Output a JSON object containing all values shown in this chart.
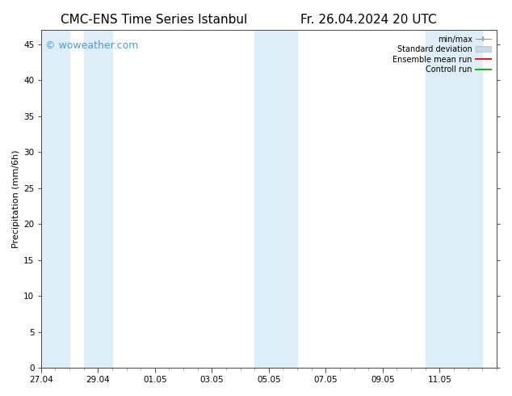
{
  "title": "CMC-ENS Time Series Istanbul",
  "title_right": "Fr. 26.04.2024 20 UTC",
  "ylabel": "Precipitation (mm/6h)",
  "watermark": "© woweather.com",
  "watermark_color": "#5599cc",
  "background_color": "#ffffff",
  "plot_bg_color": "#ffffff",
  "ylim": [
    0,
    47
  ],
  "yticks": [
    0,
    5,
    10,
    15,
    20,
    25,
    30,
    35,
    40,
    45
  ],
  "xtick_labels": [
    "27.04",
    "29.04",
    "01.05",
    "03.05",
    "05.05",
    "07.05",
    "09.05",
    "11.05"
  ],
  "xtick_positions": [
    0,
    2,
    4,
    6,
    8,
    10,
    12,
    14
  ],
  "x_min": 0,
  "x_max": 16,
  "shade_color": "#ddeef8",
  "shade_bands": [
    [
      0.0,
      1.0
    ],
    [
      1.5,
      2.5
    ],
    [
      7.5,
      9.0
    ],
    [
      13.5,
      15.5
    ]
  ],
  "title_fontsize": 11,
  "axis_label_fontsize": 8,
  "tick_fontsize": 7.5,
  "watermark_fontsize": 9,
  "legend_fontsize": 7,
  "minmax_color": "#999999",
  "stddev_color": "#c8daea",
  "ensemble_color": "#dd2222",
  "control_color": "#22aa22"
}
